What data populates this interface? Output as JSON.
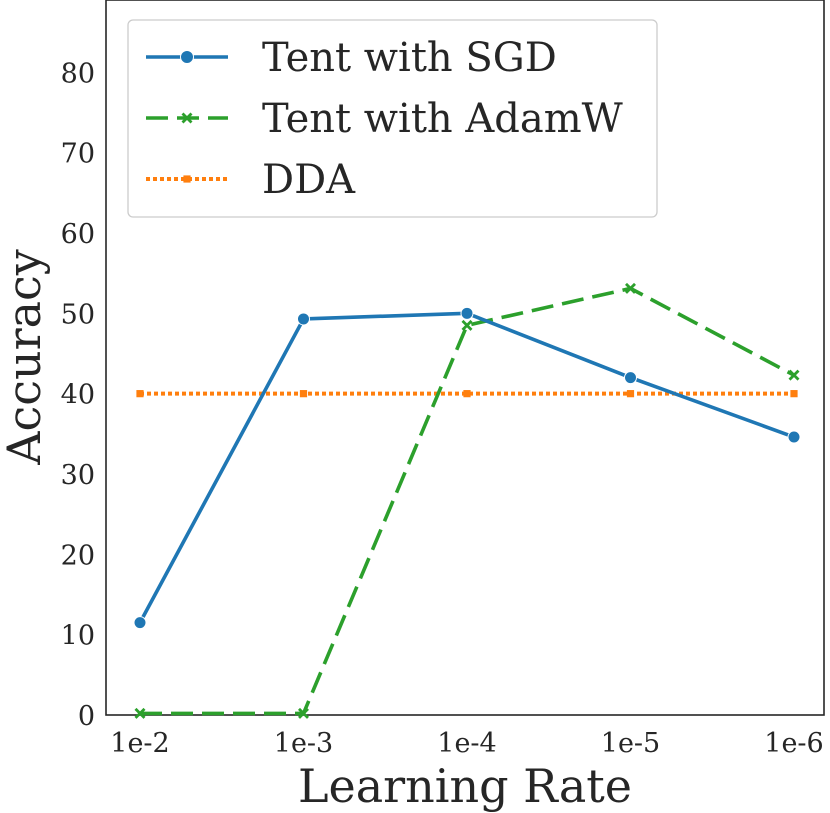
{
  "chart_data": {
    "type": "line",
    "title": "",
    "xlabel": "Learning Rate",
    "ylabel": "Accuracy",
    "categories": [
      "1e-2",
      "1e-3",
      "1e-4",
      "1e-5",
      "1e-6"
    ],
    "ylim": [
      0,
      89
    ],
    "yticks": [
      0,
      10,
      20,
      30,
      40,
      50,
      60,
      70,
      80
    ],
    "grid": false,
    "legend_position": "top-left",
    "series": [
      {
        "name": "Tent with SGD",
        "values": [
          11.5,
          49.3,
          50.0,
          42.0,
          34.6
        ],
        "color": "#1f77b4",
        "style": "solid",
        "marker": "circle"
      },
      {
        "name": "Tent with AdamW",
        "values": [
          0.2,
          0.2,
          48.5,
          53.1,
          42.3
        ],
        "color": "#2ca02c",
        "style": "dashed",
        "marker": "x"
      },
      {
        "name": "DDA",
        "values": [
          40.0,
          40.0,
          40.0,
          40.0,
          40.0
        ],
        "color": "#ff7f0e",
        "style": "dotted",
        "marker": "square"
      }
    ]
  }
}
